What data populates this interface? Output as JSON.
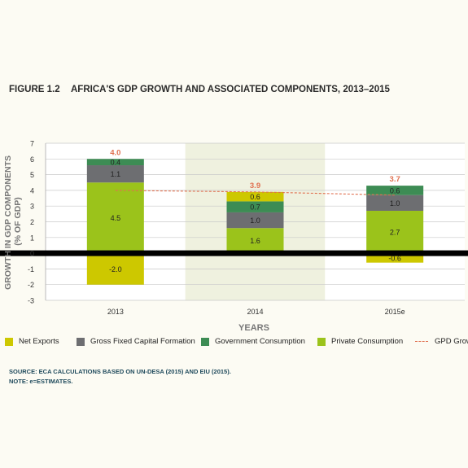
{
  "figure": {
    "number": "FIGURE 1.2",
    "title": "AFRICA'S GDP GROWTH AND ASSOCIATED COMPONENTS, 2013–2015"
  },
  "chart_data": {
    "type": "bar",
    "stacked": true,
    "categories": [
      "2013",
      "2014",
      "2015e"
    ],
    "xlabel": "YEARS",
    "ylabel": "GROWTH IN GDP COMPONENTS (% OF GDP)",
    "ylabel_lines": [
      "GROWTH IN GDP COMPONENTS",
      "(% OF GDP)"
    ],
    "ylim": [
      -3,
      7
    ],
    "yticks": [
      -3,
      -2,
      -1,
      0,
      1,
      2,
      3,
      4,
      5,
      6,
      7
    ],
    "grid": true,
    "legend_position": "bottom",
    "series": [
      {
        "name": "Net Exports",
        "color": "#cdc800",
        "values": [
          -2.0,
          0.6,
          -0.6
        ],
        "labels": [
          "-2.0",
          "0.6",
          "-0.6"
        ]
      },
      {
        "name": "Gross Fixed Capital Formation",
        "color": "#6d6e71",
        "values": [
          1.1,
          1.0,
          1.0
        ],
        "labels": [
          "1.1",
          "1.0",
          "1.0"
        ]
      },
      {
        "name": "Government Consumption",
        "color": "#3d8c54",
        "values": [
          0.4,
          0.7,
          0.6
        ],
        "labels": [
          "0.4",
          "0.7",
          "0.6"
        ]
      },
      {
        "name": "Private Consumption",
        "color": "#9bc31b",
        "values": [
          4.5,
          1.6,
          2.7
        ],
        "labels": [
          "4.5",
          "1.6",
          "2.7"
        ]
      }
    ],
    "gdp_growth": {
      "name": "GPD Growth",
      "color": "#e07050",
      "values": [
        4.0,
        3.9,
        3.7
      ],
      "labels": [
        "4.0",
        "3.9",
        "3.7"
      ]
    }
  },
  "notes": {
    "source": "SOURCE: ECA CALCULATIONS BASED ON UN-DESA (2015) AND EIU (2015).",
    "note": "NOTE: e=ESTIMATES."
  }
}
